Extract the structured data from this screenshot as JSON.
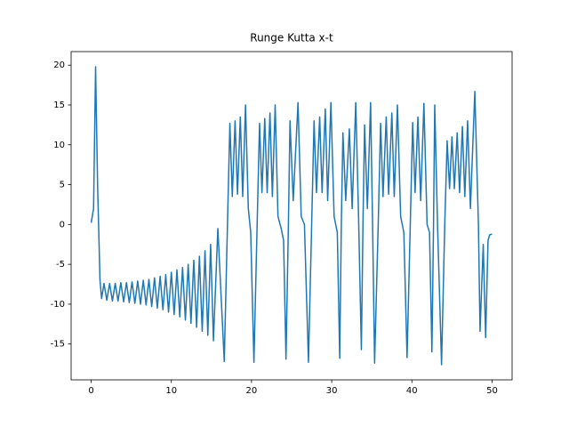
{
  "chart_data": {
    "type": "line",
    "title": "Runge Kutta x-t",
    "color": "#1f77b4",
    "x": [
      0,
      0.3,
      0.55,
      0.8,
      1.1,
      1.3,
      1.6,
      1.95,
      2.3,
      2.65,
      3.0,
      3.35,
      3.7,
      4.05,
      4.4,
      4.75,
      5.1,
      5.45,
      5.8,
      6.15,
      6.5,
      6.85,
      7.2,
      7.55,
      7.9,
      8.25,
      8.6,
      8.95,
      9.3,
      9.65,
      10.0,
      10.35,
      10.7,
      11.05,
      11.4,
      11.75,
      12.1,
      12.45,
      12.8,
      13.15,
      13.5,
      13.85,
      14.2,
      14.55,
      14.9,
      15.25,
      15.8,
      16.6,
      17.0,
      17.3,
      17.6,
      17.95,
      18.25,
      18.6,
      18.9,
      19.25,
      19.6,
      19.9,
      20.3,
      20.7,
      21.0,
      21.3,
      21.65,
      21.95,
      22.3,
      22.6,
      22.95,
      23.3,
      23.7,
      24.0,
      24.3,
      24.6,
      24.8,
      25.2,
      25.8,
      26.2,
      26.6,
      27.1,
      27.5,
      27.8,
      28.1,
      28.5,
      28.8,
      29.2,
      29.5,
      29.9,
      30.3,
      30.7,
      31.0,
      31.2,
      31.4,
      31.75,
      32.2,
      32.55,
      33.0,
      33.35,
      33.7,
      33.9,
      34.1,
      34.45,
      34.85,
      35.1,
      35.35,
      35.8,
      36.1,
      36.4,
      36.8,
      37.1,
      37.5,
      37.8,
      38.2,
      38.6,
      39.0,
      39.4,
      39.8,
      40.1,
      40.4,
      40.75,
      41.1,
      41.5,
      41.9,
      42.2,
      42.5,
      42.7,
      42.85,
      43.2,
      43.7,
      44.1,
      44.4,
      44.7,
      45.0,
      45.3,
      45.65,
      45.95,
      46.3,
      46.6,
      46.95,
      47.3,
      47.85,
      48.3,
      48.5,
      48.9,
      49.2,
      49.5,
      49.7,
      50
    ],
    "values": [
      0.2,
      2,
      19.8,
      5,
      -7,
      -9.3,
      -7.4,
      -9.5,
      -7.4,
      -9.6,
      -7.4,
      -9.6,
      -7.3,
      -9.7,
      -7.3,
      -9.8,
      -7.2,
      -9.9,
      -7.1,
      -10.0,
      -7.0,
      -10.1,
      -6.9,
      -10.3,
      -6.7,
      -10.5,
      -6.5,
      -10.7,
      -6.3,
      -11.0,
      -6.0,
      -11.3,
      -5.7,
      -11.6,
      -5.4,
      -12.0,
      -5.0,
      -12.4,
      -4.5,
      -12.9,
      -4.0,
      -13.4,
      -3.3,
      -13.9,
      -2.5,
      -14.6,
      -0.5,
      -17.2,
      0,
      12.7,
      3.5,
      13.0,
      3.8,
      13.5,
      3.5,
      15.0,
      2,
      -1,
      -17.3,
      0,
      12.7,
      4,
      13.3,
      4,
      14,
      3.5,
      15.0,
      1,
      -0.5,
      -2,
      -16.9,
      0,
      13.0,
      3,
      15.3,
      1,
      0,
      -17.3,
      0,
      13.0,
      4,
      13.5,
      4,
      14.5,
      3,
      15.3,
      1,
      -1,
      -16.8,
      0,
      11.5,
      3,
      12.0,
      2,
      15.3,
      1,
      -15.7,
      0,
      12.5,
      2,
      15.3,
      0,
      -17.4,
      0,
      12.7,
      3.5,
      13.5,
      3.8,
      14,
      3.5,
      15,
      1,
      -1,
      -16.7,
      0,
      12.8,
      4,
      13.5,
      3,
      15.2,
      0,
      -1,
      -16.0,
      0,
      15.0,
      0,
      -17.6,
      0,
      10.5,
      4.5,
      11,
      4.5,
      11.5,
      4,
      12.3,
      3.5,
      13.0,
      2,
      16.7,
      0,
      -13.4,
      -2.5,
      -14.2,
      -2,
      -1.3,
      -1.2
    ],
    "xlim": [
      -2.5,
      52.5
    ],
    "ylim": [
      -19.5,
      21.7
    ],
    "xticks": [
      0,
      10,
      20,
      30,
      40,
      50
    ],
    "yticks": [
      -15,
      -10,
      -5,
      0,
      5,
      10,
      15,
      20
    ]
  }
}
